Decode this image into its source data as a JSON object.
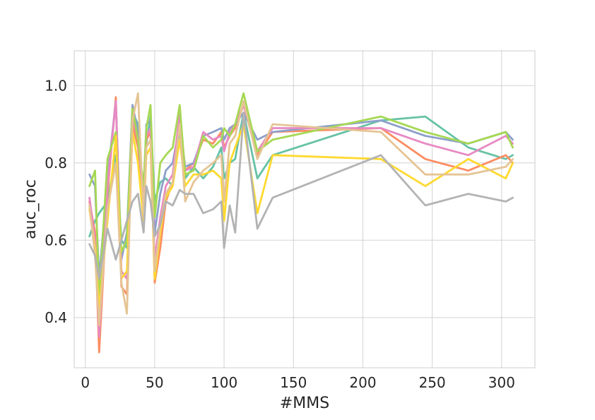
{
  "chart_data": {
    "type": "line",
    "title": "",
    "xlabel": "#MMS",
    "ylabel": "auc_roc",
    "xlim": [
      -8,
      324
    ],
    "ylim": [
      0.27,
      1.09
    ],
    "xticks": [
      0,
      50,
      100,
      150,
      200,
      250,
      300
    ],
    "yticks": [
      0.4,
      0.6,
      0.8,
      1.0
    ],
    "xtick_labels": [
      "0",
      "50",
      "100",
      "150",
      "200",
      "250",
      "300"
    ],
    "ytick_labels": [
      "0.4",
      "0.6",
      "0.8",
      "1.0"
    ],
    "grid": true,
    "legend": "none",
    "series": [
      {
        "color": "#66c2a5",
        "x": [
          3,
          7,
          10,
          16,
          22,
          26,
          30,
          34,
          38,
          42,
          44,
          47,
          50,
          54,
          58,
          63,
          68,
          72,
          78,
          85,
          92,
          98,
          100,
          104,
          108,
          114,
          124,
          135,
          213,
          245,
          276,
          303,
          308
        ],
        "y": [
          0.61,
          0.65,
          0.67,
          0.7,
          0.82,
          0.6,
          0.58,
          0.93,
          0.9,
          0.66,
          0.85,
          0.92,
          0.7,
          0.75,
          0.76,
          0.74,
          0.88,
          0.76,
          0.79,
          0.76,
          0.79,
          0.84,
          0.76,
          0.8,
          0.81,
          0.93,
          0.76,
          0.82,
          0.91,
          0.92,
          0.84,
          0.81,
          0.82
        ]
      },
      {
        "color": "#fc8d62",
        "x": [
          3,
          7,
          10,
          16,
          22,
          26,
          30,
          34,
          38,
          42,
          44,
          47,
          50,
          54,
          58,
          63,
          68,
          72,
          78,
          85,
          92,
          98,
          100,
          104,
          108,
          114,
          124,
          135,
          213,
          245,
          276,
          303,
          308
        ],
        "y": [
          0.7,
          0.62,
          0.31,
          0.72,
          0.97,
          0.48,
          0.46,
          0.9,
          0.84,
          0.68,
          0.86,
          0.88,
          0.49,
          0.58,
          0.7,
          0.75,
          0.92,
          0.78,
          0.8,
          0.86,
          0.85,
          0.88,
          0.84,
          0.87,
          0.89,
          0.95,
          0.82,
          0.88,
          0.89,
          0.81,
          0.78,
          0.82,
          0.8
        ]
      },
      {
        "color": "#8da0cb",
        "x": [
          3,
          7,
          10,
          16,
          22,
          26,
          30,
          34,
          38,
          42,
          44,
          47,
          50,
          54,
          58,
          63,
          68,
          72,
          78,
          85,
          92,
          98,
          100,
          104,
          108,
          114,
          124,
          135,
          213,
          245,
          276,
          303,
          308
        ],
        "y": [
          0.77,
          0.74,
          0.5,
          0.76,
          0.96,
          0.55,
          0.62,
          0.95,
          0.88,
          0.72,
          0.9,
          0.91,
          0.62,
          0.72,
          0.78,
          0.8,
          0.9,
          0.79,
          0.8,
          0.87,
          0.88,
          0.89,
          0.86,
          0.89,
          0.9,
          0.93,
          0.86,
          0.88,
          0.91,
          0.87,
          0.85,
          0.88,
          0.86
        ]
      },
      {
        "color": "#e78ac3",
        "x": [
          3,
          7,
          10,
          16,
          22,
          26,
          30,
          34,
          38,
          42,
          44,
          47,
          50,
          54,
          58,
          63,
          68,
          72,
          78,
          85,
          92,
          98,
          100,
          104,
          108,
          114,
          124,
          135,
          213,
          245,
          276,
          303,
          308
        ],
        "y": [
          0.71,
          0.6,
          0.35,
          0.74,
          0.96,
          0.52,
          0.5,
          0.92,
          0.86,
          0.7,
          0.87,
          0.89,
          0.55,
          0.66,
          0.74,
          0.77,
          0.93,
          0.78,
          0.79,
          0.88,
          0.86,
          0.87,
          0.83,
          0.88,
          0.9,
          0.95,
          0.83,
          0.89,
          0.89,
          0.85,
          0.82,
          0.87,
          0.85
        ]
      },
      {
        "color": "#a6d854",
        "x": [
          3,
          7,
          10,
          16,
          22,
          26,
          30,
          34,
          38,
          42,
          44,
          47,
          50,
          54,
          58,
          63,
          68,
          72,
          78,
          85,
          92,
          98,
          100,
          104,
          108,
          114,
          124,
          135,
          213,
          245,
          276,
          303,
          308
        ],
        "y": [
          0.74,
          0.78,
          0.45,
          0.81,
          0.88,
          0.57,
          0.6,
          0.94,
          0.86,
          0.74,
          0.89,
          0.95,
          0.66,
          0.8,
          0.82,
          0.84,
          0.95,
          0.77,
          0.78,
          0.87,
          0.84,
          0.86,
          0.89,
          0.87,
          0.9,
          0.98,
          0.83,
          0.86,
          0.92,
          0.88,
          0.85,
          0.88,
          0.84
        ]
      },
      {
        "color": "#ffd92f",
        "x": [
          3,
          7,
          10,
          16,
          22,
          26,
          30,
          34,
          38,
          42,
          44,
          47,
          50,
          54,
          58,
          63,
          68,
          72,
          78,
          85,
          92,
          98,
          100,
          104,
          108,
          114,
          124,
          135,
          213,
          245,
          276,
          303,
          308
        ],
        "y": [
          0.68,
          0.58,
          0.42,
          0.65,
          0.87,
          0.5,
          0.52,
          0.88,
          0.8,
          0.65,
          0.82,
          0.84,
          0.5,
          0.62,
          0.71,
          0.74,
          0.86,
          0.74,
          0.77,
          0.77,
          0.78,
          0.76,
          0.65,
          0.8,
          0.84,
          0.9,
          0.67,
          0.82,
          0.81,
          0.74,
          0.81,
          0.76,
          0.8
        ]
      },
      {
        "color": "#e5c494",
        "x": [
          3,
          7,
          10,
          16,
          22,
          26,
          30,
          34,
          38,
          42,
          44,
          47,
          50,
          54,
          58,
          63,
          68,
          72,
          78,
          85,
          92,
          98,
          100,
          104,
          108,
          114,
          124,
          135,
          213,
          245,
          276,
          303,
          308
        ],
        "y": [
          0.69,
          0.56,
          0.38,
          0.68,
          0.8,
          0.49,
          0.41,
          0.91,
          0.98,
          0.66,
          0.84,
          0.86,
          0.52,
          0.64,
          0.72,
          0.75,
          0.9,
          0.7,
          0.75,
          0.78,
          0.8,
          0.82,
          0.7,
          0.85,
          0.87,
          0.96,
          0.81,
          0.9,
          0.88,
          0.77,
          0.77,
          0.79,
          0.81
        ]
      },
      {
        "color": "#b3b3b3",
        "x": [
          3,
          7,
          10,
          16,
          22,
          26,
          30,
          34,
          38,
          42,
          44,
          47,
          50,
          54,
          58,
          63,
          68,
          72,
          78,
          85,
          92,
          98,
          100,
          104,
          108,
          114,
          124,
          135,
          213,
          245,
          276,
          303,
          308
        ],
        "y": [
          0.59,
          0.56,
          0.5,
          0.63,
          0.55,
          0.6,
          0.65,
          0.7,
          0.72,
          0.62,
          0.74,
          0.7,
          0.61,
          0.64,
          0.7,
          0.69,
          0.73,
          0.72,
          0.72,
          0.67,
          0.68,
          0.7,
          0.58,
          0.69,
          0.62,
          0.93,
          0.63,
          0.71,
          0.82,
          0.69,
          0.72,
          0.7,
          0.71
        ]
      }
    ]
  }
}
